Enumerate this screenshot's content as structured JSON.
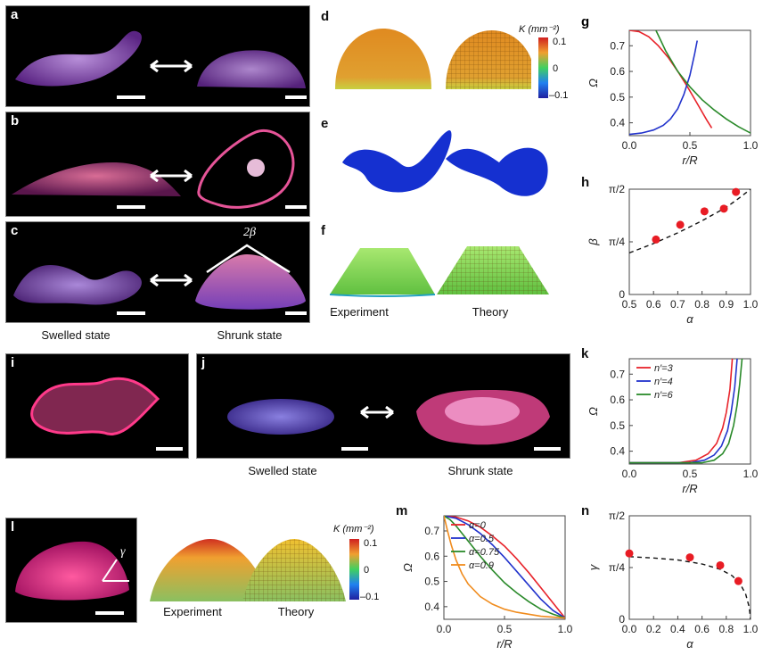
{
  "panels": {
    "a": "a",
    "b": "b",
    "c": "c",
    "d": "d",
    "e": "e",
    "f": "f",
    "g": "g",
    "h": "h",
    "i": "i",
    "j": "j",
    "k": "k",
    "l": "l",
    "m": "m",
    "n": "n"
  },
  "captions": {
    "swelled_1": "Swelled state",
    "shrunk_1": "Shrunk state",
    "swelled_2": "Swelled state",
    "shrunk_2": "Shrunk state",
    "experiment_f": "Experiment",
    "theory_f": "Theory",
    "experiment_l": "Experiment",
    "theory_l": "Theory"
  },
  "annotations": {
    "two_beta": "2β",
    "gamma": "γ"
  },
  "colorbar": {
    "label": "K (mm⁻²)",
    "max": "0.1",
    "mid": "0",
    "min": "–0.1"
  },
  "chart_data": [
    {
      "id": "g",
      "type": "line",
      "xlabel": "r/R",
      "ylabel": "Ω",
      "xlim": [
        0,
        1
      ],
      "ylim": [
        0.35,
        0.76
      ],
      "xticks": [
        "0.0",
        "0.5",
        "1.0"
      ],
      "yticks": [
        "0.4",
        "0.5",
        "0.6",
        "0.7"
      ],
      "series": [
        {
          "name": "red",
          "color": "#e8232a",
          "x": [
            0,
            0.08,
            0.16,
            0.24,
            0.32,
            0.4,
            0.48,
            0.56,
            0.64,
            0.68
          ],
          "y": [
            0.76,
            0.755,
            0.735,
            0.7,
            0.655,
            0.6,
            0.54,
            0.475,
            0.41,
            0.38
          ]
        },
        {
          "name": "blue",
          "color": "#2233cc",
          "x": [
            0,
            0.1,
            0.2,
            0.28,
            0.34,
            0.4,
            0.45,
            0.5,
            0.54,
            0.56
          ],
          "y": [
            0.355,
            0.36,
            0.372,
            0.39,
            0.415,
            0.455,
            0.51,
            0.585,
            0.67,
            0.72
          ]
        },
        {
          "name": "green",
          "color": "#2a8a2a",
          "x": [
            0.22,
            0.3,
            0.4,
            0.5,
            0.6,
            0.7,
            0.8,
            0.9,
            1.0
          ],
          "y": [
            0.76,
            0.68,
            0.6,
            0.54,
            0.49,
            0.45,
            0.415,
            0.385,
            0.36
          ]
        }
      ]
    },
    {
      "id": "h",
      "type": "scatter",
      "xlabel": "α",
      "ylabel": "β",
      "xlim": [
        0.5,
        1.0
      ],
      "ylim": [
        0,
        1.5708
      ],
      "xticks": [
        "0.5",
        "0.6",
        "0.7",
        "0.8",
        "0.9",
        "1.0"
      ],
      "ytick_labels": [
        "0",
        "π/4",
        "π/2"
      ],
      "points": {
        "x": [
          0.61,
          0.71,
          0.81,
          0.89,
          0.94
        ],
        "y": [
          0.82,
          1.04,
          1.24,
          1.28,
          1.53
        ]
      },
      "fit": {
        "x": [
          0.5,
          0.6,
          0.7,
          0.8,
          0.9,
          0.95,
          1.0
        ],
        "y": [
          0.62,
          0.76,
          0.92,
          1.1,
          1.3,
          1.43,
          1.57
        ]
      }
    },
    {
      "id": "k",
      "type": "line",
      "xlabel": "r/R",
      "ylabel": "Ω",
      "xlim": [
        0,
        1
      ],
      "ylim": [
        0.35,
        0.76
      ],
      "xticks": [
        "0.0",
        "0.5",
        "1.0"
      ],
      "yticks": [
        "0.4",
        "0.5",
        "0.6",
        "0.7"
      ],
      "legend": [
        "n′=3",
        "n′=4",
        "n′=6"
      ],
      "series": [
        {
          "name": "n′=3",
          "color": "#e8232a",
          "x": [
            0,
            0.4,
            0.55,
            0.65,
            0.72,
            0.77,
            0.8,
            0.83,
            0.85
          ],
          "y": [
            0.355,
            0.355,
            0.365,
            0.39,
            0.43,
            0.49,
            0.55,
            0.64,
            0.76
          ]
        },
        {
          "name": "n′=4",
          "color": "#2233cc",
          "x": [
            0,
            0.5,
            0.62,
            0.7,
            0.76,
            0.81,
            0.84,
            0.87,
            0.89
          ],
          "y": [
            0.355,
            0.355,
            0.365,
            0.385,
            0.42,
            0.48,
            0.55,
            0.65,
            0.76
          ]
        },
        {
          "name": "n′=6",
          "color": "#2a8a2a",
          "x": [
            0,
            0.6,
            0.7,
            0.77,
            0.82,
            0.86,
            0.89,
            0.91,
            0.93
          ],
          "y": [
            0.355,
            0.355,
            0.365,
            0.39,
            0.43,
            0.5,
            0.58,
            0.66,
            0.76
          ]
        }
      ]
    },
    {
      "id": "m",
      "type": "line",
      "xlabel": "r/R",
      "ylabel": "Ω",
      "xlim": [
        0,
        1
      ],
      "ylim": [
        0.35,
        0.76
      ],
      "xticks": [
        "0.0",
        "0.5",
        "1.0"
      ],
      "yticks": [
        "0.4",
        "0.5",
        "0.6",
        "0.7"
      ],
      "legend": [
        "α=0",
        "α=0.5",
        "α=0.75",
        "α=0.9"
      ],
      "series": [
        {
          "name": "α=0",
          "color": "#e8232a",
          "x": [
            0,
            0.1,
            0.2,
            0.3,
            0.4,
            0.5,
            0.6,
            0.7,
            0.8,
            0.9,
            1.0
          ],
          "y": [
            0.76,
            0.755,
            0.74,
            0.715,
            0.68,
            0.64,
            0.59,
            0.535,
            0.475,
            0.415,
            0.355
          ]
        },
        {
          "name": "α=0.5",
          "color": "#2233cc",
          "x": [
            0,
            0.1,
            0.2,
            0.3,
            0.4,
            0.5,
            0.6,
            0.7,
            0.8,
            0.9,
            1.0
          ],
          "y": [
            0.76,
            0.75,
            0.725,
            0.69,
            0.645,
            0.595,
            0.54,
            0.485,
            0.43,
            0.385,
            0.355
          ]
        },
        {
          "name": "α=0.75",
          "color": "#2a8a2a",
          "x": [
            0,
            0.05,
            0.1,
            0.2,
            0.3,
            0.4,
            0.5,
            0.6,
            0.7,
            0.8,
            0.9,
            1.0
          ],
          "y": [
            0.76,
            0.745,
            0.72,
            0.66,
            0.6,
            0.545,
            0.495,
            0.455,
            0.42,
            0.39,
            0.37,
            0.355
          ]
        },
        {
          "name": "α=0.9",
          "color": "#f08c1e",
          "x": [
            0,
            0.03,
            0.06,
            0.1,
            0.15,
            0.2,
            0.3,
            0.4,
            0.5,
            0.6,
            0.8,
            1.0
          ],
          "y": [
            0.76,
            0.7,
            0.645,
            0.585,
            0.53,
            0.49,
            0.44,
            0.41,
            0.39,
            0.378,
            0.362,
            0.355
          ]
        }
      ]
    },
    {
      "id": "n",
      "type": "scatter",
      "xlabel": "α",
      "ylabel": "γ",
      "xlim": [
        0,
        1.0
      ],
      "ylim": [
        0,
        1.5708
      ],
      "xticks": [
        "0.0",
        "0.2",
        "0.4",
        "0.6",
        "0.8",
        "1.0"
      ],
      "ytick_labels": [
        "0",
        "π/4",
        "π/2"
      ],
      "points": {
        "x": [
          0.0,
          0.5,
          0.75,
          0.9
        ],
        "y": [
          1.0,
          0.94,
          0.82,
          0.58
        ]
      },
      "fit": {
        "x": [
          0,
          0.2,
          0.4,
          0.6,
          0.75,
          0.85,
          0.92,
          0.96,
          0.99,
          1.0
        ],
        "y": [
          0.95,
          0.93,
          0.9,
          0.84,
          0.76,
          0.66,
          0.52,
          0.38,
          0.18,
          0.0
        ]
      }
    }
  ]
}
